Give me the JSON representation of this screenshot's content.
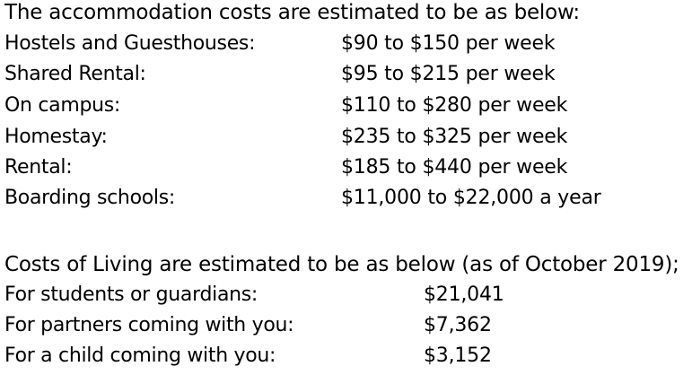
{
  "accommodation": {
    "heading": "The accommodation costs are estimated to be as below:",
    "rows": [
      {
        "label": "Hostels and Guesthouses:",
        "value": "$90 to $150 per week"
      },
      {
        "label": "Shared Rental:",
        "value": "$95 to $215 per week"
      },
      {
        "label": "On campus:",
        "value": "$110 to $280 per week"
      },
      {
        "label": "Homestay:",
        "value": "$235 to $325 per week"
      },
      {
        "label": "Rental:",
        "value": "$185 to $440 per week"
      },
      {
        "label": "Boarding schools:",
        "value": "$11,000 to $22,000 a year"
      }
    ]
  },
  "living": {
    "heading": "Costs of Living are estimated to be as below (as of October 2019);",
    "rows": [
      {
        "label": "For students or guardians:",
        "value": "$21,041"
      },
      {
        "label": "For partners coming with you:",
        "value": "$7,362"
      },
      {
        "label": "For a child coming with you:",
        "value": "$3,152"
      }
    ]
  }
}
